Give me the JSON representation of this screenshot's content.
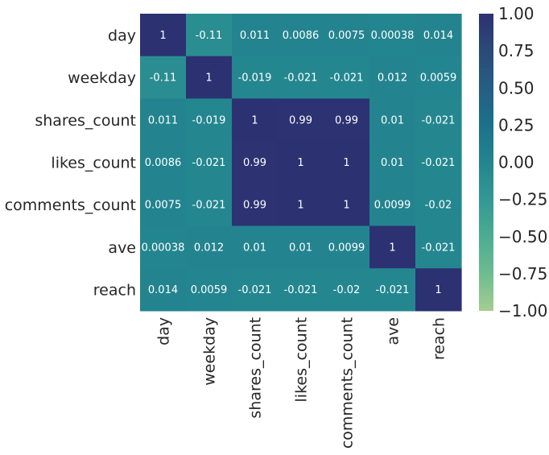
{
  "chart_data": {
    "type": "heatmap",
    "title": "",
    "xlabel": "",
    "ylabel": "",
    "row_labels": [
      "day",
      "weekday",
      "shares_count",
      "likes_count",
      "comments_count",
      "ave",
      "reach"
    ],
    "col_labels": [
      "day",
      "weekday",
      "shares_count",
      "likes_count",
      "comments_count",
      "ave",
      "reach"
    ],
    "values": [
      [
        1,
        -0.11,
        0.011,
        0.0086,
        0.0075,
        0.00038,
        0.014
      ],
      [
        -0.11,
        1,
        -0.019,
        -0.021,
        -0.021,
        0.012,
        0.0059
      ],
      [
        0.011,
        -0.019,
        1,
        0.99,
        0.99,
        0.01,
        -0.021
      ],
      [
        0.0086,
        -0.021,
        0.99,
        1,
        1,
        0.01,
        -0.021
      ],
      [
        0.0075,
        -0.021,
        0.99,
        1,
        1,
        0.0099,
        -0.02
      ],
      [
        0.00038,
        0.012,
        0.01,
        0.01,
        0.0099,
        1,
        -0.021
      ],
      [
        0.014,
        0.0059,
        -0.021,
        -0.021,
        -0.02,
        -0.021,
        1
      ]
    ],
    "cell_labels": [
      [
        "1",
        "-0.11",
        "0.011",
        "0.0086",
        "0.0075",
        "0.00038",
        "0.014"
      ],
      [
        "-0.11",
        "1",
        "-0.019",
        "-0.021",
        "-0.021",
        "0.012",
        "0.0059"
      ],
      [
        "0.011",
        "-0.019",
        "1",
        "0.99",
        "0.99",
        "0.01",
        "-0.021"
      ],
      [
        "0.0086",
        "-0.021",
        "0.99",
        "1",
        "1",
        "0.01",
        "-0.021"
      ],
      [
        "0.0075",
        "-0.021",
        "0.99",
        "1",
        "1",
        "0.0099",
        "-0.02"
      ],
      [
        "0.00038",
        "0.012",
        "0.01",
        "0.01",
        "0.0099",
        "1",
        "-0.021"
      ],
      [
        "0.014",
        "0.0059",
        "-0.021",
        "-0.021",
        "-0.02",
        "-0.021",
        "1"
      ]
    ],
    "colorbar": {
      "vmin": -1,
      "vmax": 1,
      "tick_values": [
        1,
        0.75,
        0.5,
        0.25,
        0,
        -0.25,
        -0.5,
        -0.75,
        -1
      ],
      "tick_labels": [
        "1.00",
        "0.75",
        "0.50",
        "0.25",
        "0.00",
        "−0.25",
        "−0.50",
        "−0.75",
        "−1.00"
      ],
      "colormap": "crest",
      "stops": [
        "#a5cd90",
        "#6dbc90",
        "#4cac92",
        "#339893",
        "#23858f",
        "#1c718a",
        "#255e84",
        "#2b4a79",
        "#2c3172"
      ]
    }
  }
}
